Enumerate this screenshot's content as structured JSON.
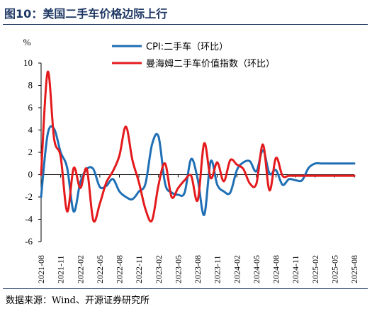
{
  "title": "图10：美国二手车价格边际上行",
  "source": "数据来源：Wind、开源证券研究所",
  "colors": {
    "cpi": "#1f6fb5",
    "manheim": "#e41a1c",
    "rule": "#1f3864"
  },
  "chart_data": {
    "type": "line",
    "ylabel": "%",
    "ylim": [
      -6,
      10
    ],
    "yticks": [
      -6,
      -4,
      -2,
      0,
      2,
      4,
      6,
      8,
      10
    ],
    "grid": false,
    "legend_position": "top-right",
    "xticks": [
      "2021-08",
      "2021-11",
      "2022-02",
      "2022-05",
      "2022-08",
      "2022-11",
      "2023-02",
      "2023-05",
      "2023-08",
      "2023-11",
      "2024-02",
      "2024-05",
      "2024-08",
      "2024-11",
      "2025-02",
      "2025-05",
      "2025-08"
    ],
    "x": [
      "2021-08",
      "2021-09",
      "2021-10",
      "2021-11",
      "2021-12",
      "2022-01",
      "2022-02",
      "2022-03",
      "2022-04",
      "2022-05",
      "2022-06",
      "2022-07",
      "2022-08",
      "2022-09",
      "2022-10",
      "2022-11",
      "2022-12",
      "2023-01",
      "2023-02",
      "2023-03",
      "2023-04",
      "2023-05",
      "2023-06",
      "2023-07",
      "2023-08",
      "2023-09",
      "2023-10",
      "2023-11",
      "2023-12",
      "2024-01",
      "2024-02",
      "2024-03",
      "2024-04",
      "2024-05",
      "2024-06",
      "2024-07",
      "2024-08",
      "2024-09",
      "2024-10",
      "2024-11",
      "2024-12",
      "2025-01",
      "2025-02",
      "2025-03",
      "2025-04",
      "2025-05",
      "2025-06",
      "2025-07",
      "2025-08"
    ],
    "series": [
      {
        "name": "CPI:二手车（环比）",
        "key": "cpi",
        "values": [
          -2.0,
          3.6,
          4.1,
          2.0,
          0.6,
          -3.3,
          -0.7,
          0.5,
          0.5,
          -1.1,
          -1.0,
          -0.4,
          -1.5,
          -2.0,
          -2.2,
          -1.5,
          -0.8,
          2.7,
          3.4,
          -0.8,
          -1.6,
          -1.8,
          -1.6,
          1.4,
          -0.4,
          -3.6,
          1.2,
          -0.9,
          -1.5,
          -1.6,
          0.4,
          1.1,
          1.2,
          0.3,
          2.2,
          0.1,
          0.4,
          -0.9,
          -0.4,
          -0.5,
          -0.5,
          0.6,
          1.0,
          1.0,
          1.0,
          1.0,
          1.0,
          1.0,
          1.0
        ]
      },
      {
        "name": "曼海姆二手车价值指数（环比）",
        "key": "manheim",
        "values": [
          0.0,
          9.2,
          3.2,
          1.6,
          -3.3,
          0.6,
          -1.2,
          0.5,
          -4.1,
          -2.6,
          -0.7,
          0.3,
          1.7,
          4.3,
          1.3,
          -0.7,
          -3.1,
          -4.1,
          -0.9,
          1.0,
          -2.0,
          -1.2,
          -0.5,
          -0.1,
          -2.3,
          2.8,
          -0.3,
          1.1,
          -0.6,
          1.3,
          0.9,
          0.5,
          -0.8,
          -0.8,
          2.7,
          -1.4,
          1.5,
          -0.1,
          -0.1,
          -0.1,
          -0.1,
          -0.1,
          -0.1,
          -0.1,
          -0.1,
          -0.1,
          -0.1,
          -0.1,
          -0.1
        ]
      }
    ]
  }
}
